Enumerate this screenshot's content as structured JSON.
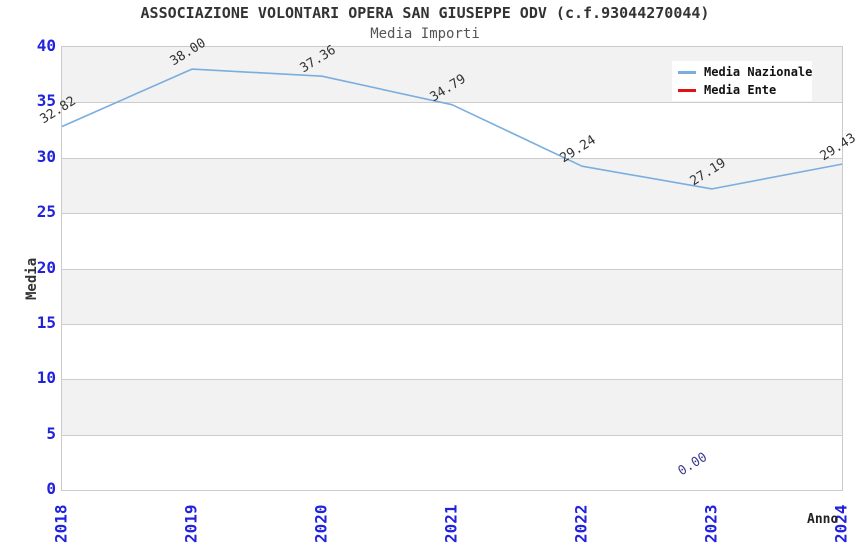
{
  "chart_data": {
    "type": "line",
    "title": "ASSOCIAZIONE VOLONTARI OPERA SAN GIUSEPPE ODV (c.f.93044270044)",
    "subtitle": "Media Importi",
    "xlabel": "Anno",
    "ylabel": "Media",
    "x": [
      2018,
      2019,
      2020,
      2021,
      2022,
      2023,
      2024
    ],
    "ylim": [
      0,
      40
    ],
    "y_ticks": [
      0,
      5,
      10,
      15,
      20,
      25,
      30,
      35,
      40
    ],
    "grid": "horizontal-bands",
    "legend_position": "top-right",
    "axis_tick_color": "#2222dd",
    "band_color": "#f2f2f2",
    "gridline_color": "#cccccc",
    "series": [
      {
        "name": "Media Nazionale",
        "color": "#7aaede",
        "x": [
          2018,
          2019,
          2020,
          2021,
          2022,
          2023,
          2024
        ],
        "values": [
          32.82,
          38.0,
          37.36,
          34.79,
          29.24,
          27.19,
          29.43
        ],
        "point_labels": [
          "32.82",
          "38.00",
          "37.36",
          "34.79",
          "29.24",
          "27.19",
          "29.43"
        ],
        "label_color": "#333333"
      },
      {
        "name": "Media Ente",
        "color": "#e01212",
        "x": [
          2023
        ],
        "values": [
          0.0
        ],
        "point_labels": [
          "0.00"
        ],
        "label_color": "#3c3c8e"
      }
    ]
  }
}
